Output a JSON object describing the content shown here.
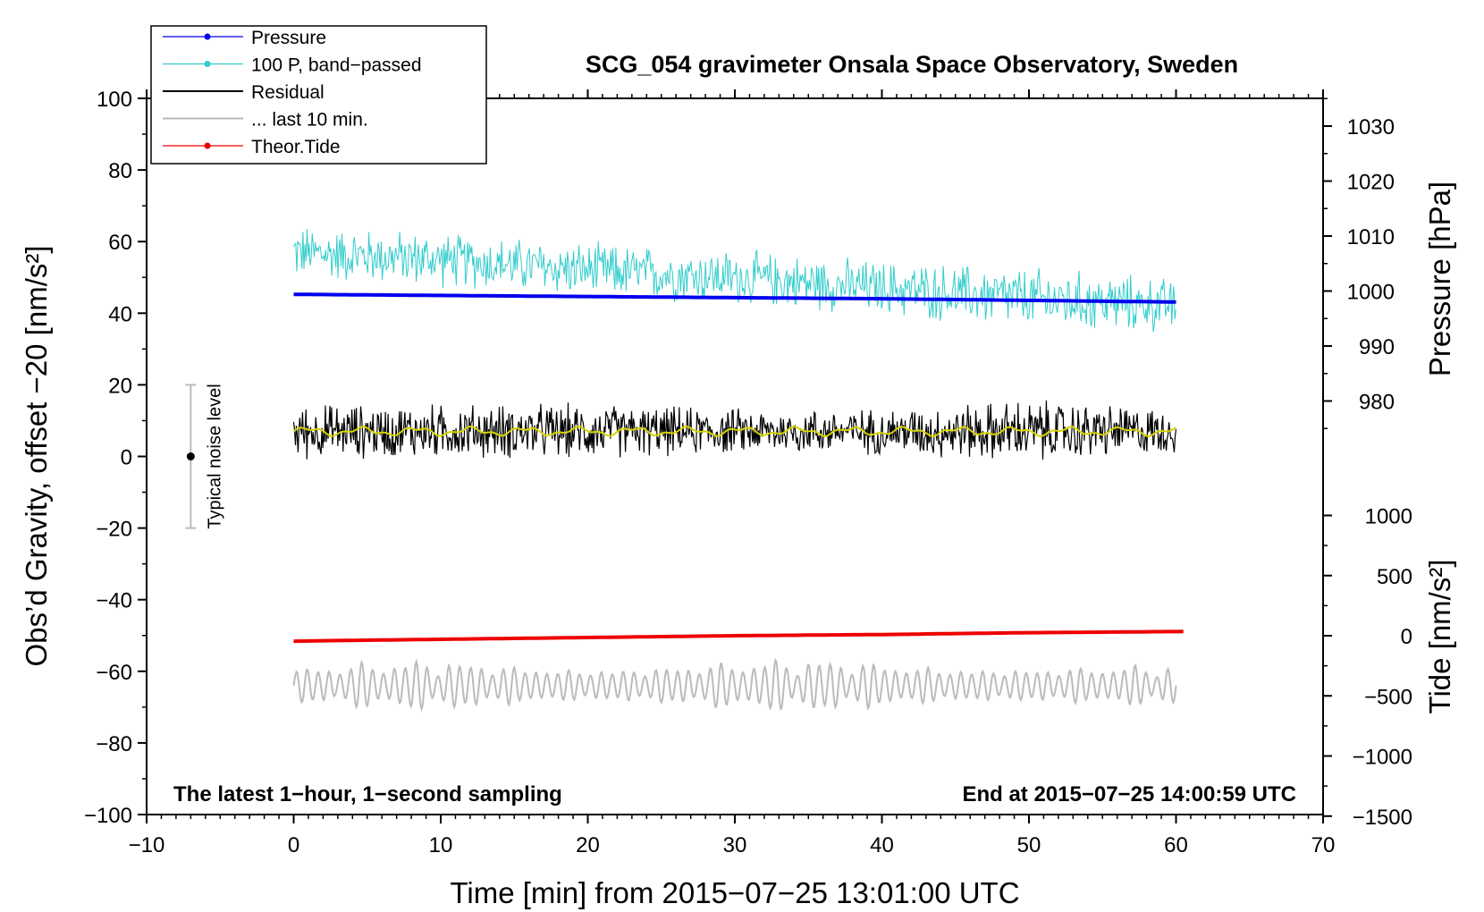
{
  "chart_data": {
    "type": "line",
    "title": "SCG_054 gravimeter Onsala Space Observatory, Sweden",
    "xlabel": "Time [min] from 2015−07−25 13:01:00 UTC",
    "ylabel_left": "Obs’d Gravity, offset −20 [nm/s²]",
    "ylabel_pressure": "Pressure [hPa]",
    "ylabel_tide": "Tide [nm/s²]",
    "xlim": [
      -10,
      70
    ],
    "ylim_left": [
      -100,
      100
    ],
    "xticks": [
      -10,
      0,
      10,
      20,
      30,
      40,
      50,
      60,
      70
    ],
    "xtick_labels": [
      "−10",
      "0",
      "10",
      "20",
      "30",
      "40",
      "50",
      "60",
      "70"
    ],
    "yticks_left": [
      100,
      80,
      60,
      40,
      20,
      0,
      -20,
      -40,
      -60,
      -80,
      -100
    ],
    "ytick_labels_left": [
      "100",
      "80",
      "60",
      "40",
      "20",
      "0",
      "−20",
      "−40",
      "−60",
      "−80",
      "−100"
    ],
    "pressure_axis": {
      "ticks": [
        1030,
        1020,
        1010,
        1000,
        990,
        980
      ],
      "tick_labels": [
        "1030",
        "1020",
        "1010",
        "1000",
        "990",
        "980"
      ],
      "range": [
        975,
        1035
      ]
    },
    "tide_axis": {
      "ticks": [
        1000,
        500,
        0,
        -500,
        -1000,
        -1500
      ],
      "tick_labels": [
        "1000",
        "500",
        "0",
        "−500",
        "−1000",
        "−1500"
      ],
      "range": [
        -1500,
        1000
      ]
    },
    "legend": [
      {
        "name": "Pressure",
        "color": "#0000ee",
        "style": "line-dot"
      },
      {
        "name": "100 P, band−passed",
        "color": "#33cccc",
        "style": "line-dot"
      },
      {
        "name": "Residual",
        "color": "#000000",
        "style": "line"
      },
      {
        "name": "... last 10 min.",
        "color": "#bbbbbb",
        "style": "line"
      },
      {
        "name": "Theor.Tide",
        "color": "#ee0000",
        "style": "line-dot"
      }
    ],
    "series": [
      {
        "name": "Pressure",
        "axis": "pressure",
        "x": [
          0,
          10,
          20,
          30,
          40,
          50,
          60
        ],
        "values": [
          999.4,
          999.2,
          999.0,
          998.8,
          998.6,
          998.3,
          998.0
        ]
      },
      {
        "name": "100 P, band−passed",
        "axis": "left",
        "x": [
          0,
          10,
          20,
          30,
          40,
          50,
          60
        ],
        "mean": [
          57,
          55,
          52,
          50,
          47,
          44,
          42
        ],
        "amplitude": [
          6,
          6,
          6,
          6,
          6,
          7,
          6
        ]
      },
      {
        "name": "Residual",
        "axis": "left",
        "x": [
          0,
          10,
          20,
          30,
          40,
          50,
          60
        ],
        "mean": [
          7,
          7,
          7,
          7,
          7,
          7,
          7
        ],
        "amplitude": [
          6,
          6,
          6,
          5,
          5,
          7,
          5
        ]
      },
      {
        "name": "... last 10 min.",
        "axis": "left",
        "x": [
          0,
          10,
          20,
          30,
          40,
          50,
          60
        ],
        "mean": [
          -64,
          -64,
          -64,
          -64,
          -64,
          -64,
          -64
        ],
        "amplitude": [
          4,
          5,
          5,
          5,
          5,
          5,
          4
        ]
      },
      {
        "name": "Theor.Tide",
        "axis": "tide",
        "x": [
          0,
          10,
          20,
          30,
          40,
          50,
          60.5
        ],
        "values": [
          -45,
          -30,
          -15,
          0,
          10,
          25,
          35
        ]
      }
    ],
    "noise_bar": {
      "label": "Typical noise level",
      "x": -7,
      "center": 0,
      "low": -20,
      "high": 20
    },
    "annotations": {
      "bottom_left": "The latest 1−hour, 1−second sampling",
      "bottom_right": "End at 2015−07−25 14:00:59 UTC"
    }
  }
}
